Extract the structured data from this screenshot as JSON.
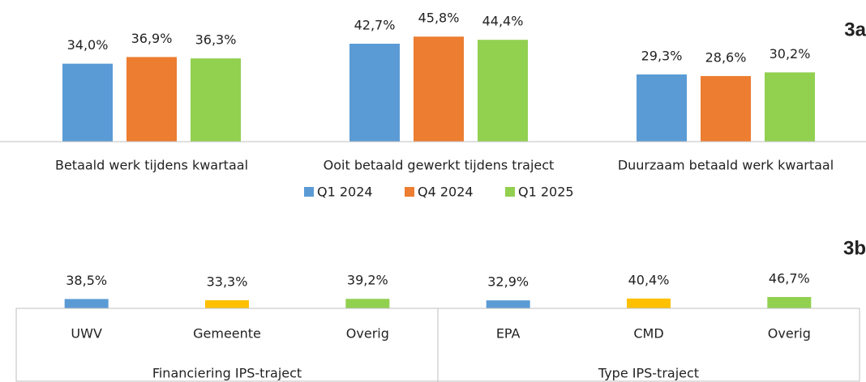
{
  "chart_data": [
    {
      "type": "bar",
      "title": "3a",
      "categories": [
        "Betaald werk tijdens kwartaal",
        "Ooit betaald gewerkt tijdens traject",
        "Duurzaam betaald werk kwartaal"
      ],
      "series": [
        {
          "name": "Q1 2024",
          "color": "#5b9bd5",
          "values": [
            34.0,
            42.7,
            29.3
          ],
          "value_labels": [
            "34,0%",
            "42,7%",
            "29,3%"
          ]
        },
        {
          "name": "Q4 2024",
          "color": "#ed7d31",
          "values": [
            36.9,
            45.8,
            28.6
          ],
          "value_labels": [
            "36,9%",
            "45,8%",
            "28,6%"
          ]
        },
        {
          "name": "Q1 2025",
          "color": "#92d050",
          "values": [
            36.3,
            44.4,
            30.2
          ],
          "value_labels": [
            "36,3%",
            "44,4%",
            "30,2%"
          ]
        }
      ],
      "ylim": [
        0,
        60
      ],
      "legend": "bottom"
    },
    {
      "type": "bar",
      "title": "3b",
      "categories": [
        "UWV",
        "Gemeente",
        "Overig",
        "EPA",
        "CMD",
        "Overig"
      ],
      "values": [
        38.5,
        33.3,
        39.2,
        32.9,
        40.4,
        46.7
      ],
      "value_labels": [
        "38,5%",
        "33,3%",
        "39,2%",
        "32,9%",
        "40,4%",
        "46,7%"
      ],
      "colors": [
        "#5b9bd5",
        "#ffc000",
        "#92d050",
        "#5b9bd5",
        "#ffc000",
        "#92d050"
      ],
      "groups": [
        "Financiering IPS-traject",
        "Type IPS-traject"
      ],
      "ylim": [
        0,
        150
      ]
    }
  ]
}
